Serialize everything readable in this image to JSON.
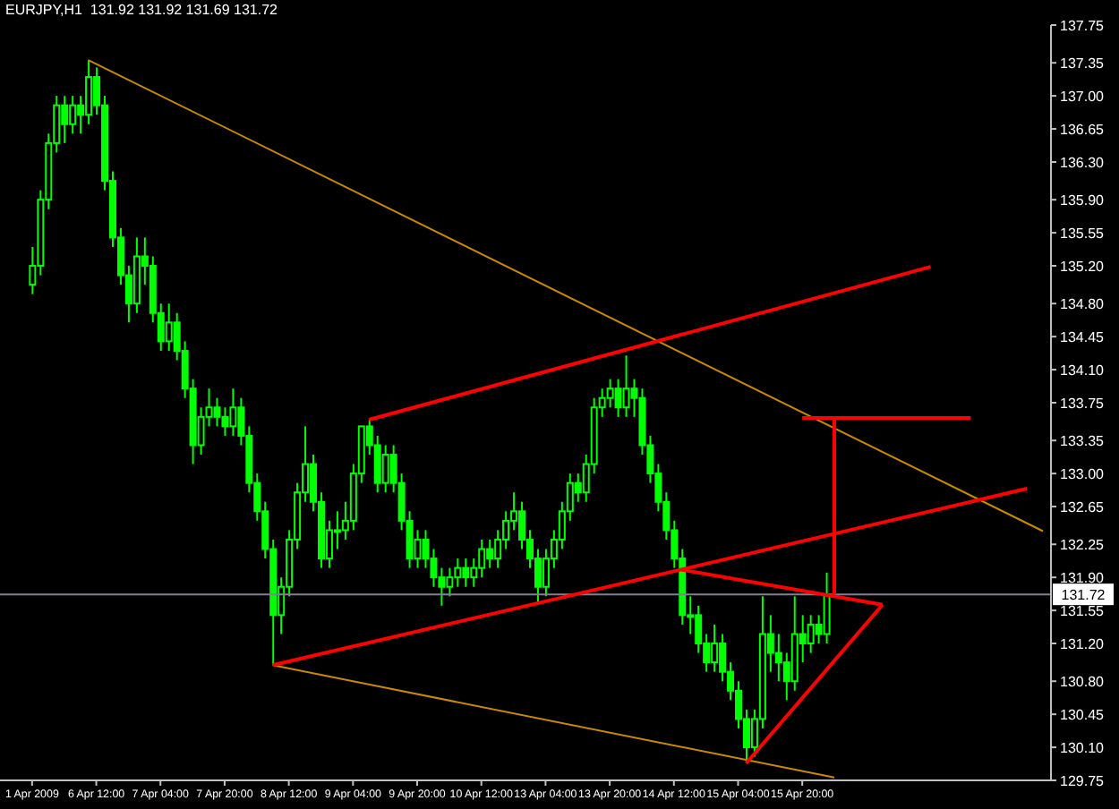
{
  "chart_data": {
    "type": "candlestick",
    "title": "EURJPY,H1  131.92 131.92 131.69 131.72",
    "color": "#00ff00",
    "categories": [
      "1 Apr 2009",
      null,
      null,
      null,
      null,
      null,
      null,
      null,
      "6 Apr 12:00",
      null,
      null,
      null,
      null,
      null,
      null,
      null,
      "7 Apr 04:00",
      null,
      null,
      null,
      null,
      null,
      null,
      null,
      "7 Apr 20:00",
      null,
      null,
      null,
      null,
      null,
      null,
      null,
      "8 Apr 12:00",
      null,
      null,
      null,
      null,
      null,
      null,
      null,
      "9 Apr 04:00",
      null,
      null,
      null,
      null,
      null,
      null,
      null,
      "9 Apr 20:00",
      null,
      null,
      null,
      null,
      null,
      null,
      null,
      "10 Apr 12:00",
      null,
      null,
      null,
      null,
      null,
      null,
      null,
      "13 Apr 04:00",
      null,
      null,
      null,
      null,
      null,
      null,
      null,
      "13 Apr 20:00",
      null,
      null,
      null,
      null,
      null,
      null,
      null,
      "14 Apr 12:00",
      null,
      null,
      null,
      null,
      null,
      null,
      null,
      "15 Apr 04:00",
      null,
      null,
      null,
      null,
      null,
      null,
      null,
      "15 Apr 20:00",
      null,
      null,
      null,
      null,
      null,
      null,
      null,
      null,
      null,
      null,
      null,
      null,
      null,
      null,
      null,
      null,
      null,
      null,
      null,
      null,
      null,
      null,
      null,
      null,
      null,
      null,
      null,
      null,
      null,
      null
    ],
    "ohlc": [
      [
        135.0,
        135.4,
        134.9,
        135.2
      ],
      [
        135.2,
        136.0,
        135.1,
        135.9
      ],
      [
        135.9,
        136.6,
        135.8,
        136.5
      ],
      [
        136.5,
        137.0,
        136.4,
        136.9
      ],
      [
        136.9,
        137.0,
        136.5,
        136.7
      ],
      [
        136.7,
        137.0,
        136.6,
        136.9
      ],
      [
        136.9,
        137.0,
        136.6,
        136.8
      ],
      [
        136.8,
        137.38,
        136.7,
        137.2
      ],
      [
        137.2,
        137.3,
        136.8,
        136.9
      ],
      [
        136.9,
        137.0,
        136.0,
        136.1
      ],
      [
        136.1,
        136.2,
        135.4,
        135.5
      ],
      [
        135.5,
        135.6,
        135.0,
        135.1
      ],
      [
        135.1,
        135.2,
        134.6,
        134.8
      ],
      [
        134.8,
        135.5,
        134.7,
        135.3
      ],
      [
        135.3,
        135.5,
        135.0,
        135.2
      ],
      [
        135.2,
        135.3,
        134.6,
        134.7
      ],
      [
        134.7,
        134.8,
        134.3,
        134.4
      ],
      [
        134.4,
        134.8,
        134.3,
        134.6
      ],
      [
        134.6,
        134.7,
        134.2,
        134.3
      ],
      [
        134.3,
        134.4,
        133.8,
        133.9
      ],
      [
        133.9,
        134.0,
        133.1,
        133.3
      ],
      [
        133.3,
        133.7,
        133.2,
        133.6
      ],
      [
        133.6,
        133.9,
        133.5,
        133.7
      ],
      [
        133.7,
        133.8,
        133.5,
        133.6
      ],
      [
        133.6,
        133.7,
        133.4,
        133.5
      ],
      [
        133.5,
        133.9,
        133.4,
        133.7
      ],
      [
        133.7,
        133.8,
        133.3,
        133.4
      ],
      [
        133.4,
        133.5,
        132.8,
        132.9
      ],
      [
        132.9,
        133.0,
        132.5,
        132.6
      ],
      [
        132.6,
        132.7,
        132.1,
        132.2
      ],
      [
        132.2,
        132.3,
        130.97,
        131.5
      ],
      [
        131.5,
        131.9,
        131.3,
        131.8
      ],
      [
        131.8,
        132.4,
        131.7,
        132.3
      ],
      [
        132.3,
        132.9,
        132.2,
        132.8
      ],
      [
        132.8,
        133.5,
        132.7,
        133.1
      ],
      [
        133.1,
        133.2,
        132.6,
        132.7
      ],
      [
        132.7,
        132.8,
        132.0,
        132.1
      ],
      [
        132.1,
        132.5,
        132.0,
        132.4
      ],
      [
        132.4,
        132.6,
        132.2,
        132.4
      ],
      [
        132.4,
        132.7,
        132.3,
        132.5
      ],
      [
        132.5,
        133.1,
        132.4,
        133.0
      ],
      [
        133.0,
        133.5,
        132.9,
        133.5
      ],
      [
        133.5,
        133.57,
        133.2,
        133.3
      ],
      [
        133.3,
        133.4,
        132.8,
        132.9
      ],
      [
        132.9,
        133.3,
        132.8,
        133.2
      ],
      [
        133.2,
        133.3,
        132.8,
        132.9
      ],
      [
        132.9,
        133.0,
        132.4,
        132.5
      ],
      [
        132.5,
        132.6,
        132.0,
        132.1
      ],
      [
        132.1,
        132.4,
        132.0,
        132.3
      ],
      [
        132.3,
        132.4,
        132.0,
        132.1
      ],
      [
        132.1,
        132.2,
        131.8,
        131.9
      ],
      [
        131.9,
        132.0,
        131.6,
        131.8
      ],
      [
        131.8,
        132.0,
        131.7,
        131.9
      ],
      [
        131.9,
        132.1,
        131.8,
        132.0
      ],
      [
        132.0,
        132.1,
        131.8,
        131.9
      ],
      [
        131.9,
        132.1,
        131.8,
        132.0
      ],
      [
        132.0,
        132.3,
        131.9,
        132.2
      ],
      [
        132.2,
        132.3,
        132.0,
        132.1
      ],
      [
        132.1,
        132.4,
        132.0,
        132.3
      ],
      [
        132.3,
        132.6,
        132.2,
        132.5
      ],
      [
        132.5,
        132.8,
        132.4,
        132.6
      ],
      [
        132.6,
        132.7,
        132.2,
        132.3
      ],
      [
        132.3,
        132.4,
        132.0,
        132.1
      ],
      [
        132.1,
        132.2,
        131.64,
        131.8
      ],
      [
        131.8,
        132.2,
        131.7,
        132.1
      ],
      [
        132.1,
        132.4,
        132.0,
        132.3
      ],
      [
        132.3,
        132.7,
        132.2,
        132.6
      ],
      [
        132.6,
        133.0,
        132.5,
        132.9
      ],
      [
        132.9,
        133.0,
        132.7,
        132.8
      ],
      [
        132.8,
        133.2,
        132.7,
        133.1
      ],
      [
        133.1,
        133.8,
        133.0,
        133.7
      ],
      [
        133.7,
        133.9,
        133.6,
        133.8
      ],
      [
        133.8,
        134.0,
        133.7,
        133.9
      ],
      [
        133.9,
        134.0,
        133.6,
        133.7
      ],
      [
        133.7,
        134.25,
        133.6,
        133.9
      ],
      [
        133.9,
        134.0,
        133.6,
        133.8
      ],
      [
        133.8,
        133.9,
        133.2,
        133.3
      ],
      [
        133.3,
        133.4,
        132.9,
        133.0
      ],
      [
        133.0,
        133.1,
        132.6,
        132.7
      ],
      [
        132.7,
        132.8,
        132.3,
        132.4
      ],
      [
        132.4,
        132.5,
        132.0,
        132.1
      ],
      [
        132.1,
        132.2,
        131.4,
        131.5
      ],
      [
        131.5,
        131.7,
        131.3,
        131.5
      ],
      [
        131.5,
        131.6,
        131.1,
        131.2
      ],
      [
        131.2,
        131.3,
        130.9,
        131.0
      ],
      [
        131.0,
        131.4,
        130.9,
        131.2
      ],
      [
        131.2,
        131.3,
        130.8,
        130.9
      ],
      [
        130.9,
        131.0,
        130.6,
        130.7
      ],
      [
        130.7,
        130.8,
        130.3,
        130.4
      ],
      [
        130.4,
        130.5,
        129.93,
        130.1
      ],
      [
        130.1,
        130.5,
        130.0,
        130.4
      ],
      [
        130.4,
        131.7,
        130.3,
        131.3
      ],
      [
        131.3,
        131.5,
        130.9,
        131.1
      ],
      [
        131.1,
        131.3,
        130.8,
        131.0
      ],
      [
        131.0,
        131.1,
        130.6,
        130.8
      ],
      [
        130.8,
        131.7,
        130.7,
        131.3
      ],
      [
        131.3,
        131.5,
        131.0,
        131.2
      ],
      [
        131.2,
        131.5,
        131.1,
        131.4
      ],
      [
        131.4,
        131.5,
        131.2,
        131.3
      ],
      [
        131.3,
        131.95,
        131.2,
        131.72
      ],
      null,
      null,
      null,
      null,
      null,
      null,
      null,
      null,
      null,
      null,
      null,
      null,
      null,
      null,
      null,
      null,
      null,
      null,
      null,
      null,
      null,
      null,
      null,
      null,
      null,
      null,
      null
    ],
    "series": [
      {
        "type": "line",
        "color": "#c88a00",
        "values": [
          null,
          null,
          null,
          null,
          null,
          null,
          null,
          137.38,
          null,
          null,
          null,
          null,
          null,
          null,
          null,
          null,
          null,
          null,
          null,
          null,
          null,
          null,
          null,
          null,
          null,
          null,
          null,
          null,
          null,
          null,
          null,
          null,
          null,
          null,
          null,
          null,
          null,
          null,
          null,
          null,
          null,
          null,
          null,
          null,
          null,
          null,
          null,
          null,
          null,
          null,
          null,
          null,
          null,
          null,
          null,
          null,
          null,
          null,
          null,
          null,
          null,
          null,
          null,
          null,
          null,
          null,
          null,
          null,
          null,
          null,
          null,
          null,
          null,
          null,
          null,
          null,
          null,
          null,
          null,
          null,
          null,
          null,
          null,
          null,
          null,
          null,
          null,
          null,
          null,
          null,
          null,
          null,
          null,
          null,
          null,
          null,
          null,
          null,
          null,
          null,
          null,
          null,
          null,
          null,
          null,
          null,
          null,
          null,
          null,
          null,
          null,
          null,
          null,
          null,
          null,
          null,
          null,
          null,
          null,
          null,
          null,
          null,
          null,
          null,
          null,
          null,
          132.39
        ]
      },
      {
        "type": "line",
        "color": "#c88a00",
        "values": [
          null,
          null,
          null,
          null,
          null,
          null,
          null,
          null,
          null,
          null,
          null,
          null,
          null,
          null,
          null,
          null,
          null,
          null,
          null,
          null,
          null,
          null,
          null,
          null,
          null,
          null,
          null,
          null,
          null,
          null,
          130.97,
          null,
          null,
          null,
          null,
          null,
          null,
          null,
          null,
          null,
          null,
          null,
          null,
          null,
          null,
          null,
          null,
          null,
          null,
          null,
          null,
          null,
          null,
          null,
          null,
          null,
          null,
          null,
          null,
          null,
          null,
          null,
          null,
          null,
          null,
          null,
          null,
          null,
          null,
          null,
          null,
          null,
          null,
          null,
          null,
          null,
          null,
          null,
          null,
          null,
          null,
          null,
          null,
          null,
          null,
          null,
          null,
          null,
          null,
          null,
          null,
          null,
          null,
          null,
          null,
          null,
          null,
          null,
          null,
          null,
          129.78,
          null,
          null,
          null,
          null,
          null,
          null,
          null,
          null,
          null,
          null,
          null,
          null,
          null,
          null,
          null,
          null,
          null,
          null,
          null,
          null,
          null,
          null,
          null,
          null,
          null,
          null
        ]
      },
      {
        "type": "line",
        "color": "#ff0000",
        "values": [
          null,
          null,
          null,
          null,
          null,
          null,
          null,
          null,
          null,
          null,
          null,
          null,
          null,
          null,
          null,
          null,
          null,
          null,
          null,
          null,
          null,
          null,
          null,
          null,
          null,
          null,
          null,
          null,
          null,
          null,
          130.97,
          null,
          null,
          null,
          null,
          null,
          null,
          null,
          null,
          null,
          null,
          null,
          null,
          null,
          null,
          null,
          null,
          null,
          null,
          null,
          null,
          null,
          null,
          null,
          null,
          null,
          null,
          null,
          null,
          null,
          null,
          null,
          null,
          null,
          null,
          null,
          null,
          null,
          null,
          null,
          null,
          null,
          null,
          null,
          null,
          null,
          null,
          null,
          null,
          null,
          null,
          null,
          null,
          null,
          null,
          null,
          null,
          null,
          null,
          null,
          null,
          null,
          null,
          null,
          null,
          null,
          null,
          null,
          null,
          null,
          null,
          null,
          null,
          null,
          null,
          null,
          null,
          null,
          null,
          null,
          null,
          null,
          null,
          null,
          null,
          null,
          null,
          null,
          null,
          null,
          null,
          null,
          null,
          null,
          132.84,
          null,
          null
        ]
      },
      {
        "type": "line",
        "color": "#ff0000",
        "values": [
          null,
          null,
          null,
          null,
          null,
          null,
          null,
          null,
          null,
          null,
          null,
          null,
          null,
          null,
          null,
          null,
          null,
          null,
          null,
          null,
          null,
          null,
          null,
          null,
          null,
          null,
          null,
          null,
          null,
          null,
          null,
          null,
          null,
          null,
          null,
          null,
          null,
          null,
          null,
          null,
          null,
          null,
          133.57,
          null,
          null,
          null,
          null,
          null,
          null,
          null,
          null,
          null,
          null,
          null,
          null,
          null,
          null,
          null,
          null,
          null,
          null,
          null,
          null,
          null,
          null,
          null,
          null,
          null,
          null,
          null,
          null,
          null,
          null,
          null,
          null,
          null,
          null,
          null,
          null,
          null,
          null,
          null,
          null,
          null,
          null,
          null,
          null,
          null,
          null,
          null,
          null,
          null,
          null,
          null,
          null,
          null,
          null,
          null,
          null,
          null,
          null,
          null,
          null,
          null,
          null,
          null,
          null,
          null,
          null,
          null,
          null,
          null,
          135.19,
          null,
          null,
          null,
          null,
          null,
          null,
          null,
          null,
          null,
          null,
          null,
          null,
          null,
          null
        ]
      },
      {
        "type": "line",
        "color": "#ff0000",
        "values": [
          null,
          null,
          null,
          null,
          null,
          null,
          null,
          null,
          null,
          null,
          null,
          null,
          null,
          null,
          null,
          null,
          null,
          null,
          null,
          null,
          null,
          null,
          null,
          null,
          null,
          null,
          null,
          null,
          null,
          null,
          null,
          null,
          null,
          null,
          null,
          null,
          null,
          null,
          null,
          null,
          null,
          null,
          null,
          null,
          null,
          null,
          null,
          null,
          null,
          null,
          null,
          null,
          null,
          null,
          null,
          null,
          null,
          null,
          null,
          null,
          null,
          null,
          null,
          null,
          null,
          null,
          null,
          null,
          null,
          null,
          null,
          null,
          null,
          null,
          null,
          null,
          null,
          null,
          null,
          null,
          null,
          131.98,
          null,
          null,
          null,
          null,
          null,
          null,
          null,
          null,
          null,
          null,
          null,
          null,
          null,
          null,
          null,
          null,
          null,
          null,
          null,
          null,
          null,
          null,
          null,
          null,
          131.61,
          null,
          null,
          null,
          null,
          null,
          null,
          null,
          null,
          null,
          null,
          null,
          null,
          null,
          null,
          null,
          null,
          null,
          null,
          null,
          null
        ]
      },
      {
        "type": "line",
        "color": "#ff0000",
        "values": [
          null,
          null,
          null,
          null,
          null,
          null,
          null,
          null,
          null,
          null,
          null,
          null,
          null,
          null,
          null,
          null,
          null,
          null,
          null,
          null,
          null,
          null,
          null,
          null,
          null,
          null,
          null,
          null,
          null,
          null,
          null,
          null,
          null,
          null,
          null,
          null,
          null,
          null,
          null,
          null,
          null,
          null,
          null,
          null,
          null,
          null,
          null,
          null,
          null,
          null,
          null,
          null,
          null,
          null,
          null,
          null,
          null,
          null,
          null,
          null,
          null,
          null,
          null,
          null,
          null,
          null,
          null,
          null,
          null,
          null,
          null,
          null,
          null,
          null,
          null,
          null,
          null,
          null,
          null,
          null,
          null,
          null,
          null,
          null,
          null,
          null,
          null,
          null,
          null,
          129.93,
          null,
          null,
          null,
          null,
          null,
          null,
          null,
          null,
          null,
          null,
          null,
          null,
          null,
          null,
          null,
          null,
          131.61,
          null,
          null,
          null,
          null,
          null,
          null,
          null,
          null,
          null,
          null,
          null,
          null,
          null,
          null,
          null,
          null,
          null,
          null,
          null,
          null
        ]
      },
      {
        "type": "line",
        "color": "#ff0000",
        "values": [
          null,
          null,
          null,
          null,
          null,
          null,
          null,
          null,
          null,
          null,
          null,
          null,
          null,
          null,
          null,
          null,
          null,
          null,
          null,
          null,
          null,
          null,
          null,
          null,
          null,
          null,
          null,
          null,
          null,
          null,
          null,
          null,
          null,
          null,
          null,
          null,
          null,
          null,
          null,
          null,
          null,
          null,
          null,
          null,
          null,
          null,
          null,
          null,
          null,
          null,
          null,
          null,
          null,
          null,
          null,
          null,
          null,
          null,
          null,
          null,
          null,
          null,
          null,
          null,
          null,
          null,
          null,
          null,
          null,
          null,
          null,
          null,
          null,
          null,
          null,
          null,
          null,
          null,
          null,
          null,
          null,
          null,
          null,
          null,
          null,
          null,
          null,
          null,
          null,
          null,
          null,
          null,
          null,
          null,
          null,
          null,
          133.59,
          null,
          null,
          null,
          null,
          null,
          null,
          null,
          null,
          null,
          null,
          null,
          null,
          null,
          null,
          null,
          null,
          null,
          null,
          null,
          null,
          133.59,
          null,
          null,
          null,
          null,
          null,
          null,
          null,
          null,
          null
        ]
      }
    ],
    "ylim": [
      129.75,
      137.75
    ],
    "yticks": [
      129.75,
      {
        "value": 130.1,
        "label": "130.10"
      },
      130.45,
      {
        "value": 130.8,
        "label": "130.80"
      },
      {
        "value": 131.2,
        "label": "131.20"
      },
      131.55,
      {
        "value": 131.9,
        "label": "131.90"
      },
      132.25,
      132.65,
      {
        "value": 133.0,
        "label": "133.00"
      },
      133.35,
      133.75,
      {
        "value": 134.1,
        "label": "134.10"
      },
      134.45,
      {
        "value": 134.8,
        "label": "134.80"
      },
      {
        "value": 135.2,
        "label": "135.20"
      },
      135.55,
      {
        "value": 135.9,
        "label": "135.90"
      },
      {
        "value": 136.3,
        "label": "136.30"
      },
      136.65,
      {
        "value": 137.0,
        "label": "137.00"
      },
      137.35,
      137.75
    ],
    "ref_lines": [
      {
        "axis": "y",
        "value": 131.72,
        "label": "131.72",
        "color": "#7f8090"
      }
    ]
  }
}
